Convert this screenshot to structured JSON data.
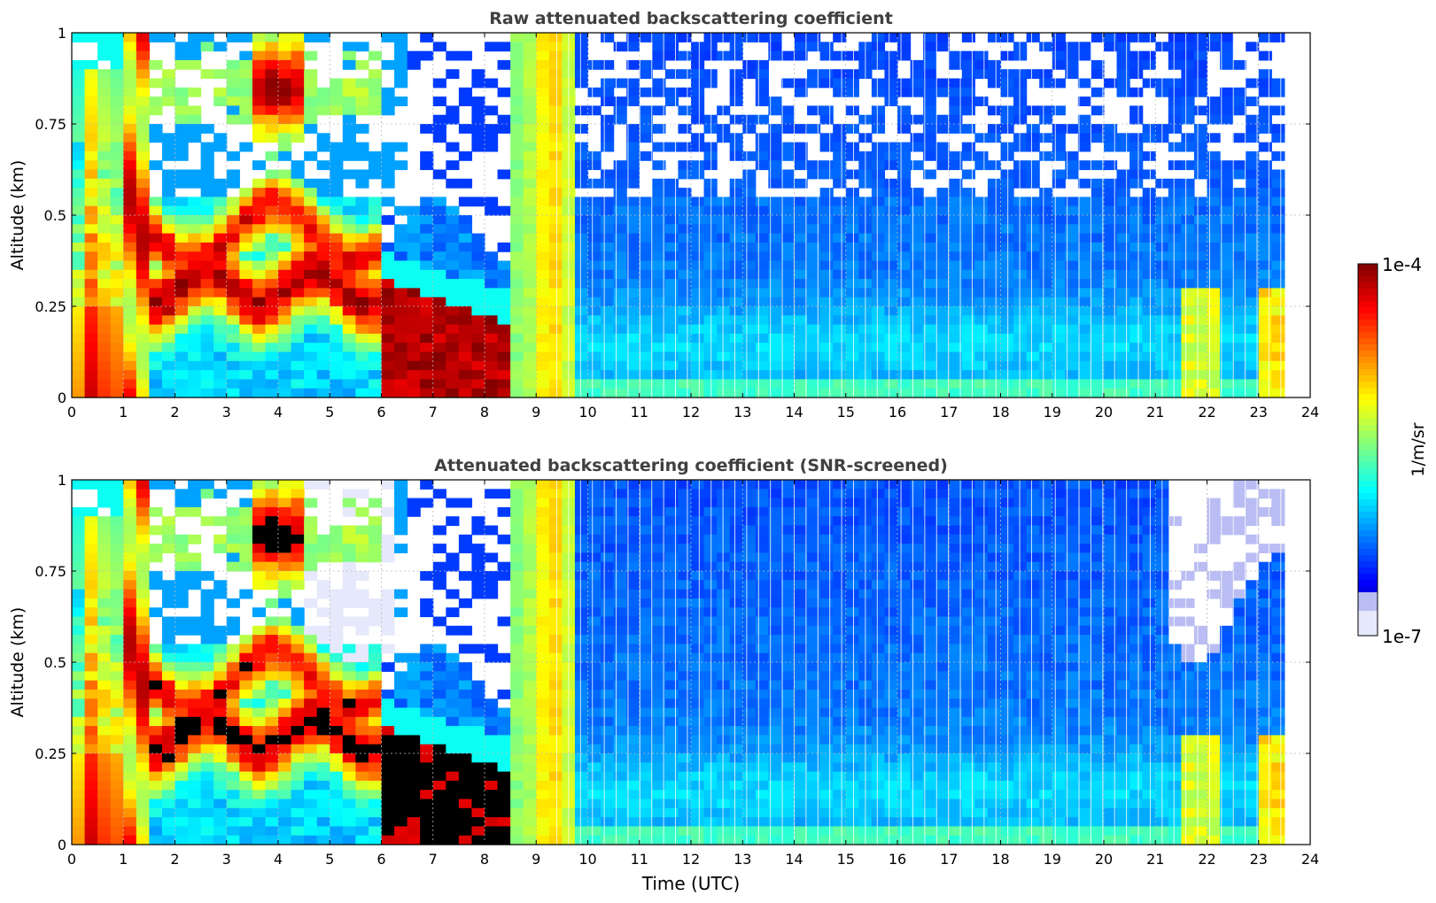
{
  "chart_data": [
    {
      "type": "heatmap",
      "title": "Raw attenuated backscattering coefficient",
      "xlabel": "",
      "ylabel": "Altitude (km)",
      "xlim": [
        0,
        24
      ],
      "ylim": [
        0,
        1
      ],
      "xticks": [
        "0",
        "1",
        "2",
        "3",
        "4",
        "5",
        "6",
        "7",
        "8",
        "9",
        "10",
        "11",
        "12",
        "13",
        "14",
        "15",
        "16",
        "17",
        "18",
        "19",
        "20",
        "21",
        "22",
        "23",
        "24"
      ],
      "yticks": [
        "0",
        "0.25",
        "0.5",
        "0.75",
        "1"
      ],
      "grid": true,
      "screened": false
    },
    {
      "type": "heatmap",
      "title": "Attenuated backscattering coefficient (SNR-screened)",
      "xlabel": "Time (UTC)",
      "ylabel": "Altitude (km)",
      "xlim": [
        0,
        24
      ],
      "ylim": [
        0,
        1
      ],
      "xticks": [
        "0",
        "1",
        "2",
        "3",
        "4",
        "5",
        "6",
        "7",
        "8",
        "9",
        "10",
        "11",
        "12",
        "13",
        "14",
        "15",
        "16",
        "17",
        "18",
        "19",
        "20",
        "21",
        "22",
        "23",
        "24"
      ],
      "yticks": [
        "0",
        "0.25",
        "0.5",
        "0.75",
        "1"
      ],
      "grid": true,
      "screened": true
    }
  ],
  "colorbar": {
    "label": "1/m/sr",
    "max_label": "1e-4",
    "min_label": "1e-7",
    "vmin": 1e-07,
    "vmax": 0.0001,
    "scale": "log",
    "colormap": "jet"
  },
  "colors": {
    "title": "#404040",
    "grid": "#bbbbbb",
    "axis": "#000000"
  }
}
